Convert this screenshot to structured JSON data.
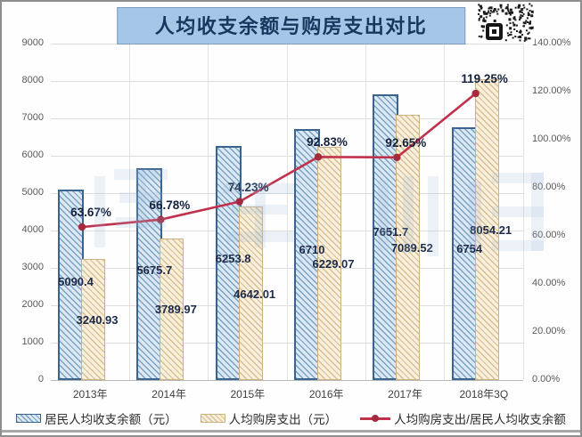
{
  "title": "人均收支余额与购房支出对比",
  "chart_data": {
    "type": "bar",
    "title": "人均收支余额与购房支出对比",
    "categories": [
      "2013年",
      "2014年",
      "2015年",
      "2016年",
      "2017年",
      "2018年3Q"
    ],
    "series": [
      {
        "name": "居民人均收支余额（元）",
        "type": "bar",
        "axis": "left",
        "values": [
          5090.4,
          5675.7,
          6253.8,
          6710,
          7651.7,
          6754
        ],
        "labels": [
          "5090.4",
          "5675.7",
          "6253.8",
          "6710",
          "7651.7",
          "6754"
        ]
      },
      {
        "name": "人均购房支出（元）",
        "type": "bar",
        "axis": "left",
        "values": [
          3240.93,
          3789.97,
          4642.01,
          6229.07,
          7089.52,
          8054.21
        ],
        "labels": [
          "3240.93",
          "3789.97",
          "4642.01",
          "6229.07",
          "7089.52",
          "8054.21"
        ]
      },
      {
        "name": "人均购房支出/居民人均收支余额",
        "type": "line",
        "axis": "right",
        "values": [
          63.67,
          66.78,
          74.23,
          92.83,
          92.65,
          119.25
        ],
        "labels": [
          "63.67%",
          "66.78%",
          "74.23%",
          "92.83%",
          "92.65%",
          "119.25%"
        ]
      }
    ],
    "left_axis": {
      "min": 0,
      "max": 9000,
      "step": 1000,
      "ticks": [
        "0",
        "1000",
        "2000",
        "3000",
        "4000",
        "5000",
        "6000",
        "7000",
        "8000",
        "9000"
      ]
    },
    "right_axis": {
      "min": 0,
      "max": 140,
      "step": 20,
      "ticks": [
        "0.00%",
        "20.00%",
        "40.00%",
        "60.00%",
        "80.00%",
        "100.00%",
        "120.00%",
        "140.00%"
      ]
    },
    "grid": true,
    "legend_position": "bottom"
  },
  "colors": {
    "title_bg": "#a6c6e7",
    "title_text": "#17375d",
    "bar1_fill": "#dce8f3",
    "bar1_hatch": "#7ba3c4",
    "bar1_border": "#3a648e",
    "bar2_fill": "#f8efdc",
    "bar2_hatch": "#d9bf91",
    "bar2_border": "#ccb184",
    "line": "#c0314b",
    "marker": "#a62a3e",
    "grid": "#dedede",
    "axis_text": "#595959",
    "label_text": "#1d2b49"
  },
  "icons": {
    "qr_code": "qr-code"
  }
}
